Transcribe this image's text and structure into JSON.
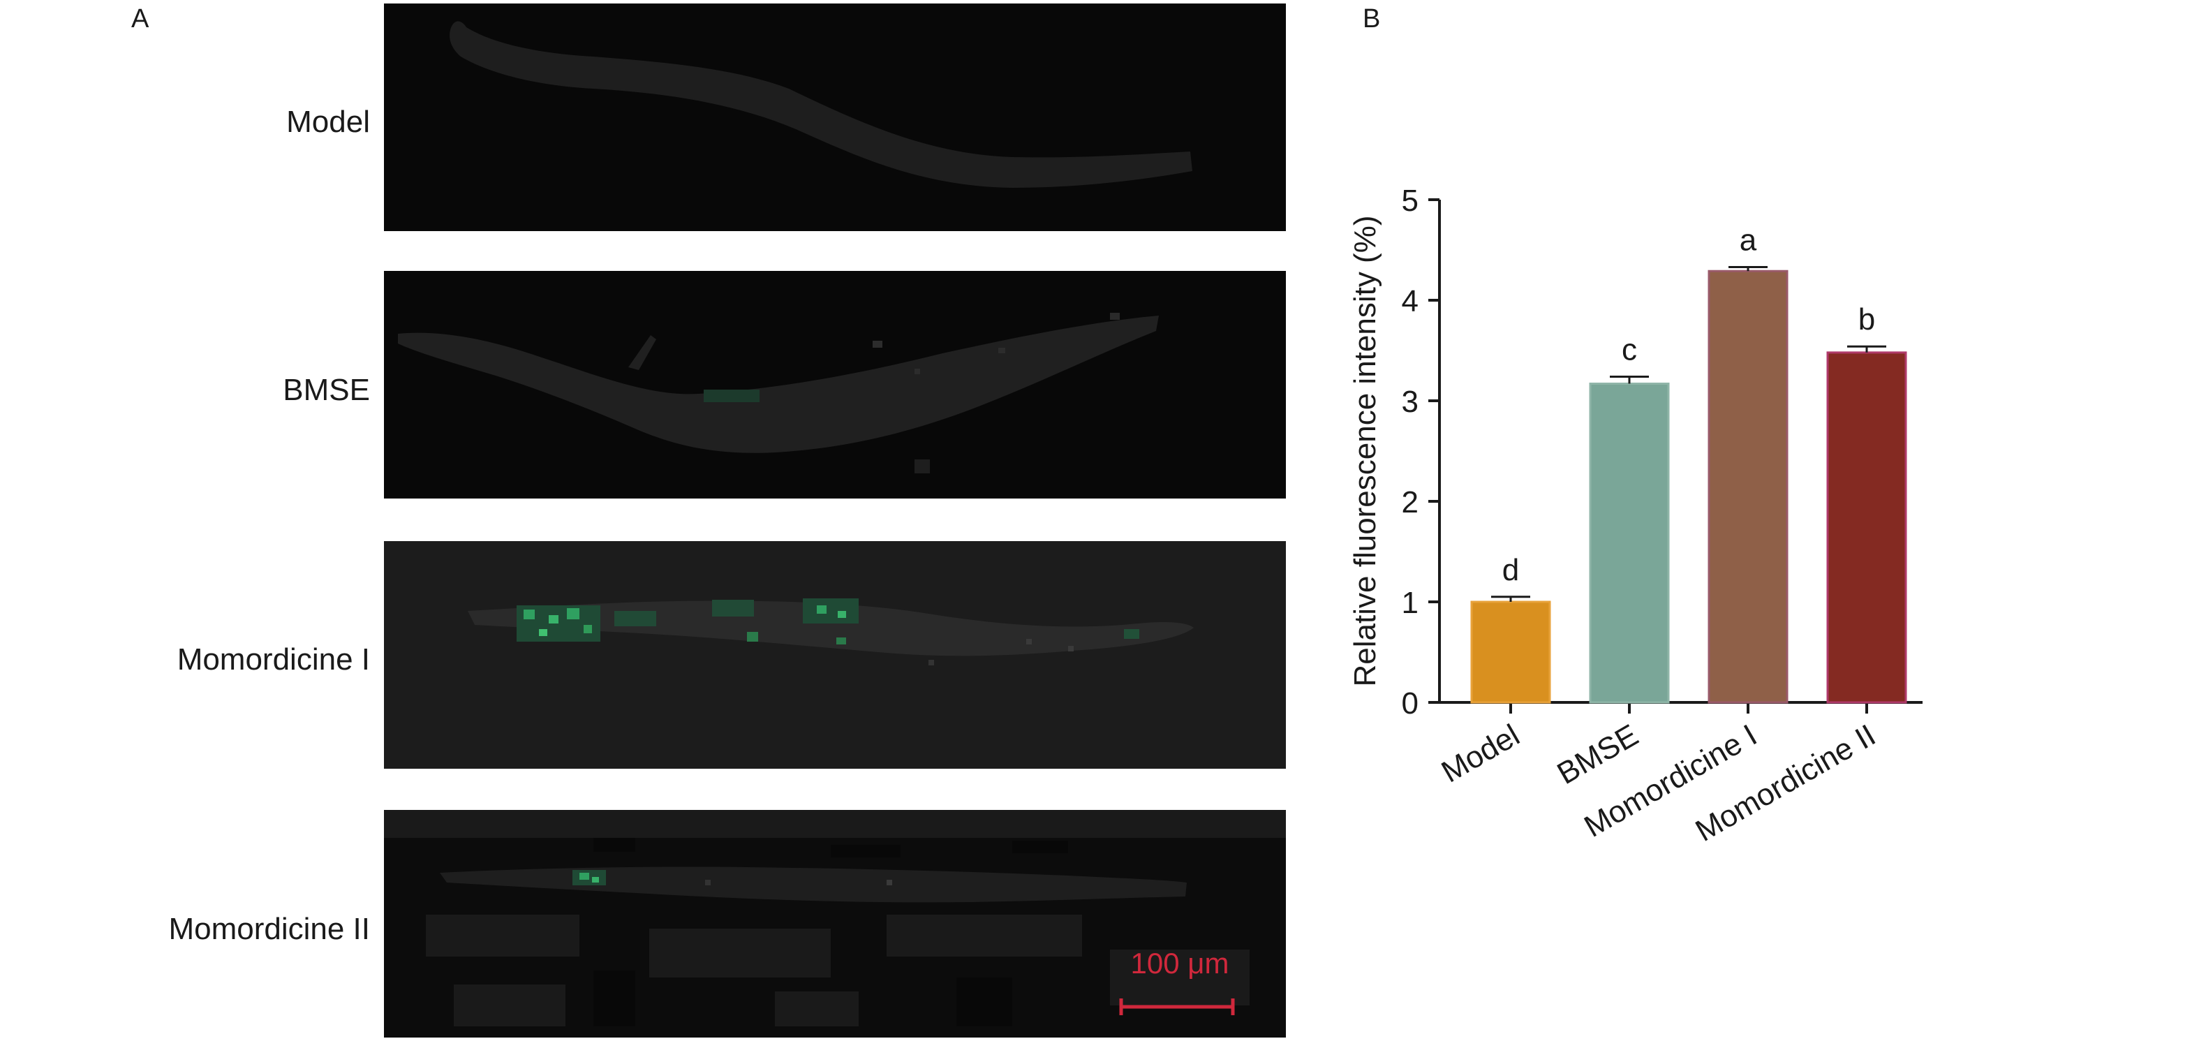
{
  "panels": {
    "left_letter": "A",
    "right_letter": "B"
  },
  "micrographs": [
    {
      "label": "Model",
      "fluor_color": "#2a8a55"
    },
    {
      "label": "BMSE",
      "fluor_color": "#2a8a55"
    },
    {
      "label": "Momordicine I",
      "fluor_color": "#2fa060"
    },
    {
      "label": "Momordicine II",
      "fluor_color": "#2fa060"
    }
  ],
  "scale_bar": {
    "label": "100 μm",
    "color": "#d0283c"
  },
  "chart_data": {
    "type": "bar",
    "categories": [
      "Model",
      "BMSE",
      "Momordicine I",
      "Momordicine II"
    ],
    "values": [
      1.0,
      3.17,
      4.29,
      3.48
    ],
    "errors": [
      0.05,
      0.07,
      0.04,
      0.06
    ],
    "significance_letters": [
      "d",
      "c",
      "a",
      "b"
    ],
    "colors": [
      "#d9901f",
      "#7aa698",
      "#8f6048",
      "#842a22"
    ],
    "border_colors": [
      "#e8a23a",
      "#8fb5a8",
      "#9a5a6a",
      "#b03a6a"
    ],
    "ylabel": "Relative fluorescence intensity (%)",
    "xlabel": "",
    "ylim": [
      0,
      5
    ],
    "yticks": [
      0,
      1,
      2,
      3,
      4,
      5
    ],
    "grid": false,
    "legend": "none"
  }
}
